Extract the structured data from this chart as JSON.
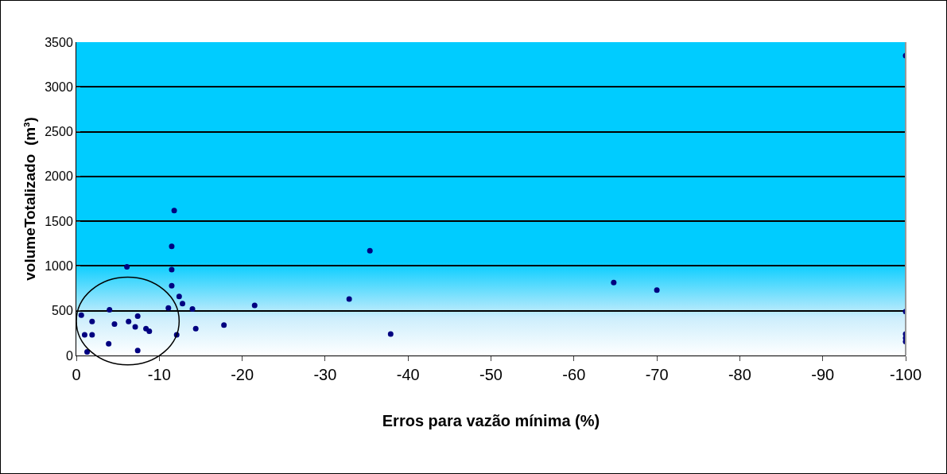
{
  "chart_data": {
    "type": "scatter",
    "xlabel": "Erros para vazão mínima (%)",
    "ylabel": "volumeTotalizado  (m³)",
    "series": [
      {
        "color": "#000080",
        "x": [
          -11.8,
          -11.5,
          -11.5,
          -6.1,
          -11.5,
          -12.4,
          -12.8,
          -11.1,
          -14.0,
          -21.5,
          -0.6,
          -4.0,
          -1.9,
          -4.6,
          -6.3,
          -7.4,
          -7.1,
          -8.4,
          -8.8,
          -14.4,
          -17.8,
          -1.0,
          -1.9,
          -12.1,
          -3.9,
          -1.3,
          -7.4,
          -35.4,
          -32.9,
          -37.9,
          -64.8,
          -70,
          -100,
          -100,
          -100,
          -100,
          -100
        ],
        "values": [
          1620,
          1220,
          960,
          990,
          780,
          660,
          580,
          530,
          520,
          560,
          450,
          510,
          380,
          350,
          380,
          440,
          320,
          300,
          270,
          300,
          340,
          230,
          230,
          230,
          130,
          40,
          55,
          1170,
          630,
          240,
          815,
          730,
          3350,
          490,
          240,
          195,
          155
        ]
      }
    ],
    "xlim": [
      0,
      -100
    ],
    "xticks": [
      0,
      -10,
      -20,
      -30,
      -40,
      -50,
      -60,
      -70,
      -80,
      -90,
      -100
    ],
    "ylim": [
      0,
      3500
    ],
    "yticks": [
      0,
      500,
      1000,
      1500,
      2000,
      2500,
      3000,
      3500
    ],
    "grid": "y",
    "legend": false,
    "marker": "circle"
  }
}
